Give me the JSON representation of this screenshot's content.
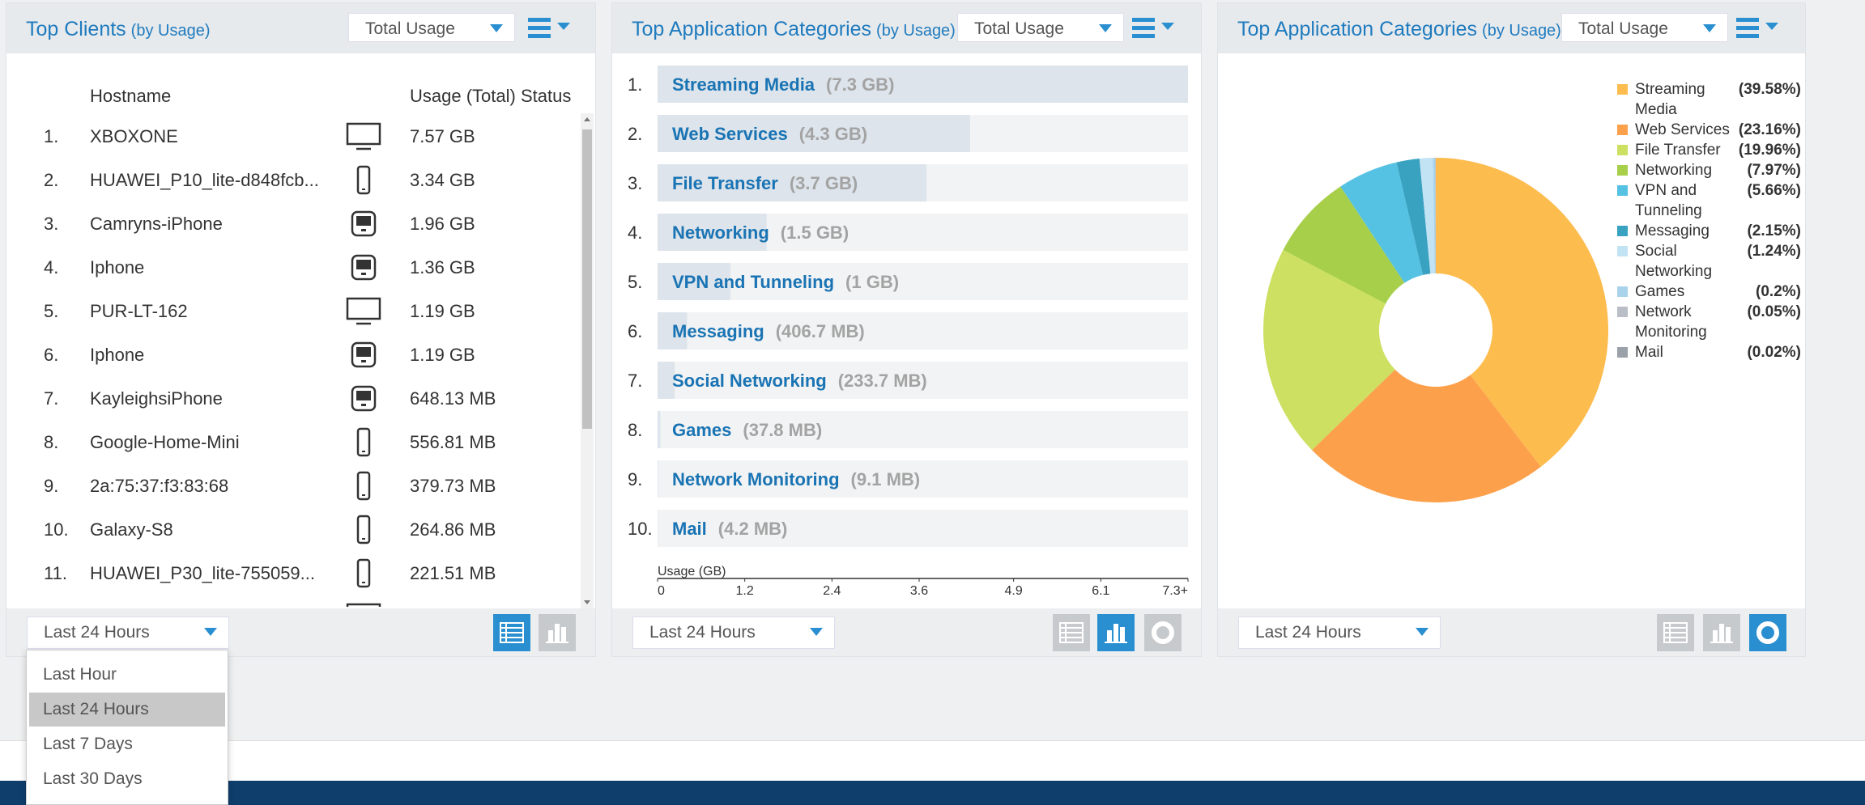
{
  "panels": [
    {
      "title": "Top Clients",
      "subtitle": "(by Usage)",
      "selector": "Total Usage",
      "columns": [
        "Hostname",
        "Usage (Total)",
        "Status"
      ],
      "rows": [
        [
          "1.",
          "XBOXONE",
          "7.57 GB"
        ],
        [
          "2.",
          "HUAWEI_P10_lite-d848fcb...",
          "3.34 GB"
        ],
        [
          "3.",
          "Camryns-iPhone",
          "1.96 GB"
        ],
        [
          "4.",
          "Iphone",
          "1.36 GB"
        ],
        [
          "5.",
          "PUR-LT-162",
          "1.19 GB"
        ],
        [
          "6.",
          "Iphone",
          "1.19 GB"
        ],
        [
          "7.",
          "KayleighsiPhone",
          "648.13 MB"
        ],
        [
          "8.",
          "Google-Home-Mini",
          "556.81 MB"
        ],
        [
          "9.",
          "2a:75:37:f3:83:68",
          "379.73 MB"
        ],
        [
          "10.",
          "Galaxy-S8",
          "264.86 MB"
        ],
        [
          "11.",
          "HUAWEI_P30_lite-755059...",
          "221.51 MB"
        ]
      ],
      "range": "Last 24 Hours"
    },
    {
      "title": "Top Application Categories",
      "subtitle": "(by Usage)",
      "selector": "Total Usage",
      "range": "Last 24 Hours"
    },
    {
      "title": "Top Application Categories",
      "subtitle": "(by Usage)",
      "selector": "Total Usage",
      "range": "Last 24 Hours"
    }
  ],
  "range_menu": [
    "Last Hour",
    "Last 24 Hours",
    "Last 7 Days",
    "Last 30 Days"
  ],
  "chart_data": [
    {
      "type": "bar",
      "horizontal": true,
      "ranks": [
        "1.",
        "2.",
        "3.",
        "4.",
        "5.",
        "6.",
        "7.",
        "8.",
        "9.",
        "10."
      ],
      "categories": [
        "Streaming Media",
        "Web Services",
        "File Transfer",
        "Networking",
        "VPN and Tunneling",
        "Messaging",
        "Social Networking",
        "Games",
        "Network Monitoring",
        "Mail"
      ],
      "values": [
        7.3,
        4.3,
        3.7,
        1.5,
        1,
        0.4067,
        0.2337,
        0.0378,
        0.0091,
        0.0042
      ],
      "value_labels": [
        "(7.3 GB)",
        "(4.3 GB)",
        "(3.7 GB)",
        "(1.5 GB)",
        "(1 GB)",
        "(406.7 MB)",
        "(233.7 MB)",
        "(37.8 MB)",
        "(9.1 MB)",
        "(4.2 MB)"
      ],
      "color": "#dde4eb",
      "x_label": "Usage (GB)",
      "xlim": [
        0,
        7.3
      ],
      "xticks": [
        0,
        1.2,
        2.4,
        3.6,
        4.9,
        6.1,
        {
          "value": 7.3,
          "label": "7.3+"
        }
      ]
    },
    {
      "type": "donut",
      "categories": [
        "Streaming Media",
        "Web Services",
        "File Transfer",
        "Networking",
        "VPN and Tunneling",
        "Messaging",
        "Social Networking",
        "Games",
        "Network Monitoring",
        "Mail"
      ],
      "values": [
        39.58,
        23.16,
        19.96,
        7.97,
        5.66,
        2.15,
        1.24,
        0.2,
        0.05,
        0.02
      ],
      "value_labels": [
        "(39.58%)",
        "(23.16%)",
        "(19.96%)",
        "(7.97%)",
        "(5.66%)",
        "(2.15%)",
        "(1.24%)",
        "(0.2%)",
        "(0.05%)",
        "(0.02%)"
      ],
      "colors": [
        "#fdbc4e",
        "#fca04b",
        "#cde062",
        "#a7cf4a",
        "#55c1e3",
        "#3aa2c1",
        "#c2e3f3",
        "#a9d3ea",
        "#b9bec6",
        "#9ba1a9"
      ],
      "legend": "top-right"
    }
  ]
}
